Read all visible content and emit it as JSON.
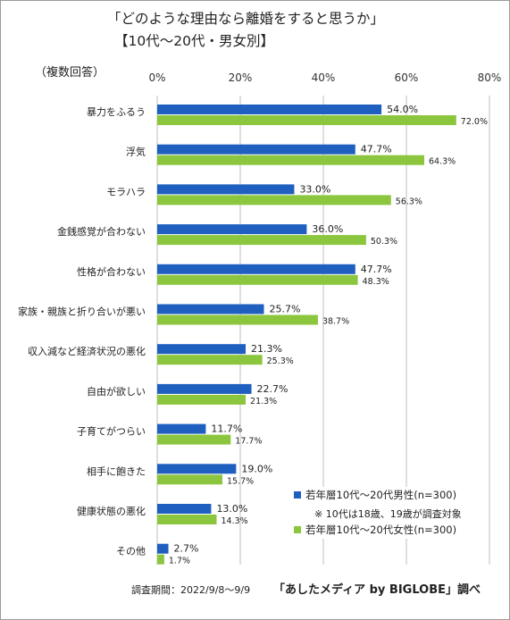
{
  "title_line1": "「どのような理由なら離婚をすると思うか」",
  "title_line2": "【10代〜20代・男女別】",
  "multi_answer_note": "（複数回答）",
  "survey_period": "調査期間：2022/9/8〜9/9",
  "source_credit": "「あしたメディア by BIGLOBE」調べ",
  "legend_note": "※ 10代は18歳、19歳が調査対象",
  "colors": {
    "male": "#1f5fbf",
    "female": "#8cc63e",
    "grid": "#bfbfbf"
  },
  "chart_data": {
    "type": "bar",
    "orientation": "horizontal",
    "categories": [
      "暴力をふるう",
      "浮気",
      "モラハラ",
      "金銭感覚が合わない",
      "性格が合わない",
      "家族・親族と折り合いが悪い",
      "収入減など経済状況の悪化",
      "自由が欲しい",
      "子育てがつらい",
      "相手に飽きた",
      "健康状態の悪化",
      "その他"
    ],
    "series": [
      {
        "name": "若年層10代〜20代男性(n=300)",
        "values": [
          54.0,
          47.7,
          33.0,
          36.0,
          47.7,
          25.7,
          21.3,
          22.7,
          11.7,
          19.0,
          13.0,
          2.7
        ],
        "labels": [
          "54.0%",
          "47.7%",
          "33.0%",
          "36.0%",
          "47.7%",
          "25.7%",
          "21.3%",
          "22.7%",
          "11.7%",
          "19.0%",
          "13.0%",
          "2.7%"
        ]
      },
      {
        "name": "若年層10代〜20代女性(n=300)",
        "values": [
          72.0,
          64.3,
          56.3,
          50.3,
          48.3,
          38.7,
          25.3,
          21.3,
          17.7,
          15.7,
          14.3,
          1.7
        ],
        "labels": [
          "72.0%",
          "64.3%",
          "56.3%",
          "50.3%",
          "48.3%",
          "38.7%",
          "25.3%",
          "21.3%",
          "17.7%",
          "15.7%",
          "14.3%",
          "1.7%"
        ]
      }
    ],
    "xlim": [
      0,
      80
    ],
    "xticks": [
      0,
      20,
      40,
      60,
      80
    ],
    "xtick_labels": [
      "0%",
      "20%",
      "40%",
      "60%",
      "80%"
    ],
    "grid": true,
    "legend_position": "lower-right"
  }
}
